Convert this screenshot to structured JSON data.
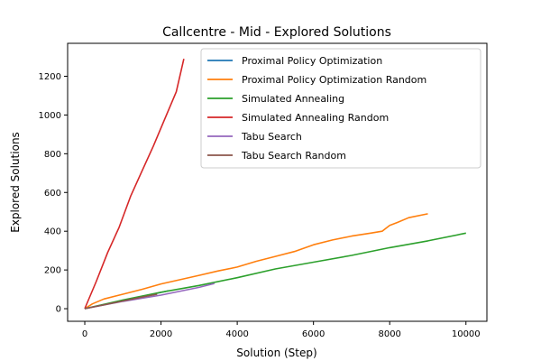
{
  "chart_data": {
    "type": "line",
    "title": "Callcentre - Mid - Explored Solutions",
    "xlabel": "Solution (Step)",
    "ylabel": "Explored Solutions",
    "xlim": [
      -450,
      10550
    ],
    "ylim": [
      -65,
      1370
    ],
    "xticks": [
      "0",
      "2000",
      "4000",
      "6000",
      "8000",
      "10000"
    ],
    "xtick_values": [
      0,
      2000,
      4000,
      6000,
      8000,
      10000
    ],
    "yticks": [
      "0",
      "200",
      "400",
      "600",
      "800",
      "1000",
      "1200"
    ],
    "ytick_values": [
      0,
      200,
      400,
      600,
      800,
      1000,
      1200
    ],
    "grid": false,
    "legend_position": "top-right",
    "series": [
      {
        "name": "Proximal Policy Optimization",
        "color": "#1f77b4",
        "points": [
          [
            0,
            0
          ],
          [
            1000,
            42
          ],
          [
            2000,
            84
          ],
          [
            2200,
            93
          ]
        ]
      },
      {
        "name": "Proximal Policy Optimization Random",
        "color": "#ff7f0e",
        "points": [
          [
            0,
            0
          ],
          [
            200,
            25
          ],
          [
            500,
            50
          ],
          [
            1000,
            75
          ],
          [
            1500,
            100
          ],
          [
            2000,
            128
          ],
          [
            2500,
            150
          ],
          [
            3000,
            172
          ],
          [
            3500,
            195
          ],
          [
            4000,
            215
          ],
          [
            4500,
            245
          ],
          [
            5000,
            270
          ],
          [
            5500,
            295
          ],
          [
            6000,
            330
          ],
          [
            6500,
            355
          ],
          [
            7000,
            375
          ],
          [
            7500,
            390
          ],
          [
            7800,
            400
          ],
          [
            8000,
            430
          ],
          [
            8200,
            445
          ],
          [
            8500,
            470
          ],
          [
            9000,
            490
          ]
        ]
      },
      {
        "name": "Simulated Annealing",
        "color": "#2ca02c",
        "points": [
          [
            0,
            0
          ],
          [
            1000,
            45
          ],
          [
            2000,
            85
          ],
          [
            3000,
            120
          ],
          [
            4000,
            160
          ],
          [
            5000,
            205
          ],
          [
            6000,
            240
          ],
          [
            7000,
            275
          ],
          [
            8000,
            315
          ],
          [
            9000,
            350
          ],
          [
            10000,
            390
          ]
        ]
      },
      {
        "name": "Simulated Annealing Random",
        "color": "#d62728",
        "points": [
          [
            0,
            0
          ],
          [
            300,
            140
          ],
          [
            600,
            290
          ],
          [
            900,
            420
          ],
          [
            1200,
            580
          ],
          [
            1500,
            710
          ],
          [
            1800,
            840
          ],
          [
            2100,
            980
          ],
          [
            2400,
            1120
          ],
          [
            2600,
            1290
          ]
        ]
      },
      {
        "name": "Tabu Search",
        "color": "#9467bd",
        "points": [
          [
            0,
            0
          ],
          [
            1000,
            38
          ],
          [
            2000,
            70
          ],
          [
            3000,
            110
          ],
          [
            3400,
            130
          ]
        ]
      },
      {
        "name": "Tabu Search Random",
        "color": "#8c564b",
        "points": [
          [
            0,
            0
          ],
          [
            500,
            20
          ],
          [
            1000,
            40
          ],
          [
            1500,
            60
          ],
          [
            1900,
            75
          ]
        ]
      }
    ]
  }
}
